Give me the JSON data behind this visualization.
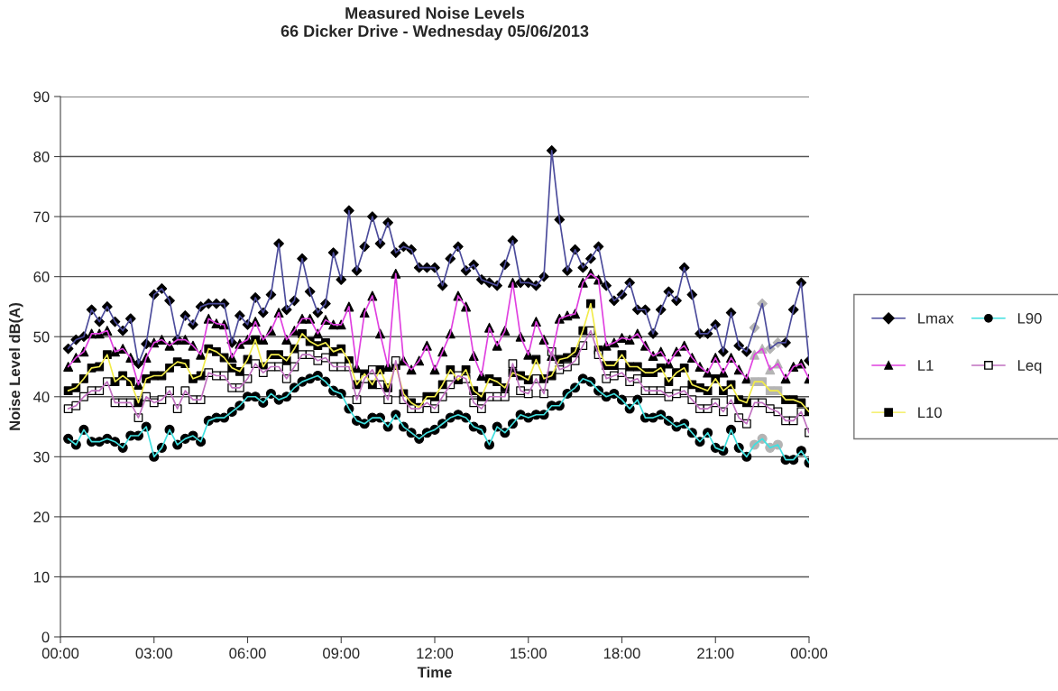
{
  "chart_data": {
    "type": "line",
    "title": "Measured Noise Levels",
    "subtitle": "66 Dicker Drive - Wednesday 05/06/2013",
    "xlabel": "Time",
    "ylabel": "Noise Level dB(A)",
    "x": [
      0.25,
      0.5,
      0.75,
      1,
      1.25,
      1.5,
      1.75,
      2,
      2.25,
      2.5,
      2.75,
      3,
      3.25,
      3.5,
      3.75,
      4,
      4.25,
      4.5,
      4.75,
      5,
      5.25,
      5.5,
      5.75,
      6,
      6.25,
      6.5,
      6.75,
      7,
      7.25,
      7.5,
      7.75,
      8,
      8.25,
      8.5,
      8.75,
      9,
      9.25,
      9.5,
      9.75,
      10,
      10.25,
      10.5,
      10.75,
      11,
      11.25,
      11.5,
      11.75,
      12,
      12.25,
      12.5,
      12.75,
      13,
      13.25,
      13.5,
      13.75,
      14,
      14.25,
      14.5,
      14.75,
      15,
      15.25,
      15.5,
      15.75,
      16,
      16.25,
      16.5,
      16.75,
      17,
      17.25,
      17.5,
      17.75,
      18,
      18.25,
      18.5,
      18.75,
      19,
      19.25,
      19.5,
      19.75,
      20,
      20.25,
      20.5,
      20.75,
      21,
      21.25,
      21.5,
      21.75,
      22,
      22.25,
      22.5,
      22.75,
      23,
      23.25,
      23.5,
      23.75,
      24
    ],
    "xlim": [
      0,
      24
    ],
    "xticks": [
      {
        "value": 0,
        "label": "00:00"
      },
      {
        "value": 3,
        "label": "03:00"
      },
      {
        "value": 6,
        "label": "06:00"
      },
      {
        "value": 9,
        "label": "09:00"
      },
      {
        "value": 12,
        "label": "12:00"
      },
      {
        "value": 15,
        "label": "15:00"
      },
      {
        "value": 18,
        "label": "18:00"
      },
      {
        "value": 21,
        "label": "21:00"
      },
      {
        "value": 24,
        "label": "00:00"
      }
    ],
    "ylim": [
      0,
      90
    ],
    "yticks": [
      0,
      10,
      20,
      30,
      40,
      50,
      60,
      70,
      80,
      90
    ],
    "grid": "y",
    "legend": "right",
    "line_style": "solid",
    "series": [
      {
        "name": "Lmax",
        "color": "#4b4b9b",
        "marker": "diamond",
        "values": [
          48,
          49.5,
          50,
          54.5,
          52.5,
          55,
          52.5,
          51,
          53,
          45.5,
          48.8,
          57,
          58,
          56,
          49.5,
          53.5,
          52,
          55,
          55.5,
          55.5,
          55.5,
          49,
          53.5,
          52,
          56.5,
          54,
          57,
          65.5,
          54.5,
          56,
          63,
          57.5,
          54,
          55.5,
          64,
          59.5,
          71,
          61,
          65,
          70,
          65.5,
          69,
          64,
          65,
          64.5,
          61.5,
          61.5,
          61.5,
          58.5,
          63,
          65,
          61,
          62,
          59.5,
          59,
          58.5,
          62,
          66,
          59,
          59,
          58.5,
          60,
          81,
          69.5,
          61,
          64.5,
          61.5,
          63,
          65,
          58.5,
          56,
          57,
          59,
          54.5,
          54.5,
          50.5,
          54.5,
          57.5,
          56,
          61.5,
          57,
          50.5,
          50.5,
          52,
          47.5,
          54,
          48.5,
          47.5,
          51.5,
          55.5,
          48,
          49,
          49,
          54.5,
          59,
          46
        ],
        "colors": [
          "#000000",
          "#000000",
          "#000000",
          "#000000",
          "#000000",
          "#000000",
          "#000000",
          "#000000",
          "#000000",
          "#000000",
          "#000000",
          "#000000",
          "#000000",
          "#000000",
          "#000000",
          "#000000",
          "#000000",
          "#000000",
          "#000000",
          "#000000",
          "#000000",
          "#000000",
          "#000000",
          "#000000",
          "#000000",
          "#000000",
          "#000000",
          "#000000",
          "#000000",
          "#000000",
          "#000000",
          "#000000",
          "#000000",
          "#000000",
          "#000000",
          "#000000",
          "#000000",
          "#000000",
          "#000000",
          "#000000",
          "#000000",
          "#000000",
          "#000000",
          "#000000",
          "#000000",
          "#000000",
          "#000000",
          "#000000",
          "#000000",
          "#000000",
          "#000000",
          "#000000",
          "#000000",
          "#000000",
          "#000000",
          "#000000",
          "#000000",
          "#000000",
          "#000000",
          "#000000",
          "#000000",
          "#000000",
          "#000000",
          "#000000",
          "#000000",
          "#000000",
          "#000000",
          "#000000",
          "#000000",
          "#000000",
          "#000000",
          "#000000",
          "#000000",
          "#000000",
          "#000000",
          "#000000",
          "#000000",
          "#000000",
          "#000000",
          "#000000",
          "#000000",
          "#000000",
          "#000000",
          "#000000",
          "#000000",
          "#000000",
          "#000000",
          "#000000",
          "#b4b4b4",
          "#b4b4b4",
          "#b4b4b4",
          "#b4b4b4",
          "#000000",
          "#000000",
          "#000000",
          "#000000"
        ]
      },
      {
        "name": "L1",
        "color": "#e040e0",
        "marker": "triangle",
        "values": [
          45,
          46.5,
          47.5,
          50.5,
          50.5,
          51,
          47.5,
          48,
          46.5,
          42,
          46.5,
          49,
          49.5,
          48.5,
          49.5,
          49.5,
          48.5,
          47,
          53,
          52.2,
          52,
          46.5,
          48.8,
          49.5,
          52.5,
          49.5,
          51,
          54,
          49.5,
          51,
          53,
          53,
          50.5,
          52.8,
          52,
          52,
          55,
          44.8,
          54,
          56.8,
          50.5,
          45,
          60.5,
          46,
          44.5,
          46,
          48.5,
          44.5,
          47.5,
          50.5,
          56.8,
          55,
          46.8,
          43.5,
          51.5,
          48.5,
          51,
          59,
          50,
          47,
          52.5,
          49.5,
          46.8,
          53,
          53.5,
          53.8,
          59,
          60.5,
          59.5,
          48.5,
          49,
          49.8,
          49.5,
          50.5,
          48.5,
          46.8,
          47.5,
          45.5,
          47.5,
          48.5,
          46.5,
          45,
          44,
          46.5,
          44,
          46.5,
          44.5,
          43,
          47,
          48,
          44.5,
          45.5,
          43,
          45,
          45.5,
          43
        ],
        "colors": [
          "#000000",
          "#000000",
          "#000000",
          "#000000",
          "#000000",
          "#000000",
          "#000000",
          "#000000",
          "#000000",
          "#000000",
          "#000000",
          "#000000",
          "#000000",
          "#000000",
          "#000000",
          "#000000",
          "#000000",
          "#000000",
          "#000000",
          "#000000",
          "#000000",
          "#000000",
          "#000000",
          "#000000",
          "#000000",
          "#000000",
          "#000000",
          "#000000",
          "#000000",
          "#000000",
          "#000000",
          "#000000",
          "#000000",
          "#000000",
          "#000000",
          "#000000",
          "#000000",
          "#000000",
          "#000000",
          "#000000",
          "#000000",
          "#000000",
          "#000000",
          "#000000",
          "#000000",
          "#000000",
          "#000000",
          "#000000",
          "#000000",
          "#000000",
          "#000000",
          "#000000",
          "#000000",
          "#000000",
          "#000000",
          "#000000",
          "#000000",
          "#000000",
          "#000000",
          "#000000",
          "#000000",
          "#000000",
          "#000000",
          "#000000",
          "#000000",
          "#000000",
          "#000000",
          "#000000",
          "#000000",
          "#000000",
          "#000000",
          "#000000",
          "#000000",
          "#000000",
          "#000000",
          "#000000",
          "#000000",
          "#000000",
          "#000000",
          "#000000",
          "#000000",
          "#000000",
          "#000000",
          "#000000",
          "#000000",
          "#000000",
          "#000000",
          "#000000",
          "#b4b4b4",
          "#b4b4b4",
          "#b4b4b4",
          "#b4b4b4",
          "#000000",
          "#000000",
          "#000000",
          "#000000"
        ]
      },
      {
        "name": "L10",
        "color": "#f2ec4a",
        "marker": "square",
        "values": [
          41,
          41.5,
          43,
          44.8,
          45,
          47,
          42.5,
          43.5,
          42.5,
          39,
          43,
          43.5,
          43.5,
          44.8,
          45.8,
          45.5,
          43,
          43.5,
          48,
          47.5,
          46.5,
          44.8,
          44.2,
          46.2,
          49.5,
          45,
          47,
          47,
          46,
          48,
          50.5,
          49.2,
          48.5,
          49,
          47.5,
          48,
          46,
          42,
          43.8,
          42,
          44.5,
          41.5,
          45.2,
          40.5,
          39,
          38.2,
          40,
          40,
          42,
          44.5,
          42.8,
          44.5,
          41,
          40,
          43,
          42.5,
          41.5,
          44,
          43.5,
          42.8,
          46.2,
          43,
          43.5,
          46.2,
          46.5,
          47.5,
          51,
          55.5,
          47.8,
          45.2,
          45.2,
          47,
          45,
          45,
          44,
          44,
          44.8,
          42.5,
          44,
          44.8,
          42,
          41.5,
          41,
          43,
          41,
          42,
          39.5,
          39,
          42.5,
          42.5,
          41,
          41,
          39.5,
          39.5,
          39,
          37.5
        ],
        "colors": [
          "#000000",
          "#000000",
          "#000000",
          "#000000",
          "#000000",
          "#000000",
          "#000000",
          "#000000",
          "#000000",
          "#000000",
          "#000000",
          "#000000",
          "#000000",
          "#000000",
          "#000000",
          "#000000",
          "#000000",
          "#000000",
          "#000000",
          "#000000",
          "#000000",
          "#000000",
          "#000000",
          "#000000",
          "#000000",
          "#000000",
          "#000000",
          "#000000",
          "#000000",
          "#000000",
          "#000000",
          "#000000",
          "#000000",
          "#000000",
          "#000000",
          "#000000",
          "#000000",
          "#000000",
          "#000000",
          "#000000",
          "#000000",
          "#000000",
          "#000000",
          "#000000",
          "#000000",
          "#000000",
          "#000000",
          "#000000",
          "#000000",
          "#000000",
          "#000000",
          "#000000",
          "#000000",
          "#000000",
          "#000000",
          "#000000",
          "#000000",
          "#000000",
          "#000000",
          "#000000",
          "#000000",
          "#000000",
          "#000000",
          "#000000",
          "#000000",
          "#000000",
          "#000000",
          "#000000",
          "#000000",
          "#000000",
          "#000000",
          "#000000",
          "#000000",
          "#000000",
          "#000000",
          "#000000",
          "#000000",
          "#000000",
          "#000000",
          "#000000",
          "#000000",
          "#000000",
          "#000000",
          "#000000",
          "#000000",
          "#000000",
          "#000000",
          "#000000",
          "#b4b4b4",
          "#b4b4b4",
          "#b4b4b4",
          "#b4b4b4",
          "#000000",
          "#000000",
          "#000000",
          "#000000"
        ]
      },
      {
        "name": "L90",
        "color": "#40e0e0",
        "marker": "circle",
        "values": [
          33,
          32,
          34.5,
          32.5,
          32.5,
          33,
          32.5,
          31.5,
          33.5,
          33.5,
          35,
          30,
          31.5,
          34.5,
          32,
          33,
          33.5,
          32.5,
          36,
          36.5,
          36.5,
          37.5,
          38.5,
          40,
          40,
          39,
          40.5,
          39.5,
          40,
          41.5,
          42.5,
          43,
          43.5,
          42.5,
          41,
          40.5,
          38,
          36,
          35.5,
          36.5,
          36.5,
          35,
          37,
          35,
          34,
          33,
          34,
          34.5,
          35.5,
          36.5,
          37,
          36.5,
          35,
          34.5,
          32,
          35,
          34,
          35.5,
          37,
          36.5,
          37,
          37,
          38.5,
          38.5,
          40.5,
          41.5,
          43,
          42.5,
          41,
          40,
          40.5,
          39.5,
          38,
          39.5,
          36.5,
          36.5,
          37,
          36,
          35,
          35.5,
          34,
          32.5,
          34,
          31.5,
          31,
          34.5,
          31.5,
          30,
          32,
          33,
          31.5,
          32,
          29.5,
          29.5,
          31,
          29
        ],
        "colors": [
          "#000000",
          "#000000",
          "#000000",
          "#000000",
          "#000000",
          "#000000",
          "#000000",
          "#000000",
          "#000000",
          "#000000",
          "#000000",
          "#000000",
          "#000000",
          "#000000",
          "#000000",
          "#000000",
          "#000000",
          "#000000",
          "#000000",
          "#000000",
          "#000000",
          "#000000",
          "#000000",
          "#000000",
          "#000000",
          "#000000",
          "#000000",
          "#000000",
          "#000000",
          "#000000",
          "#000000",
          "#000000",
          "#000000",
          "#000000",
          "#000000",
          "#000000",
          "#000000",
          "#000000",
          "#000000",
          "#000000",
          "#000000",
          "#000000",
          "#000000",
          "#000000",
          "#000000",
          "#000000",
          "#000000",
          "#000000",
          "#000000",
          "#000000",
          "#000000",
          "#000000",
          "#000000",
          "#000000",
          "#000000",
          "#000000",
          "#000000",
          "#000000",
          "#000000",
          "#000000",
          "#000000",
          "#000000",
          "#000000",
          "#000000",
          "#000000",
          "#000000",
          "#000000",
          "#000000",
          "#000000",
          "#000000",
          "#000000",
          "#000000",
          "#000000",
          "#000000",
          "#000000",
          "#000000",
          "#000000",
          "#000000",
          "#000000",
          "#000000",
          "#000000",
          "#000000",
          "#000000",
          "#000000",
          "#000000",
          "#000000",
          "#000000",
          "#000000",
          "#b4b4b4",
          "#b4b4b4",
          "#b4b4b4",
          "#b4b4b4",
          "#000000",
          "#000000",
          "#000000",
          "#000000"
        ]
      },
      {
        "name": "Leq",
        "color": "#c070c0",
        "marker": "square",
        "values": [
          38,
          38.5,
          40,
          41,
          41,
          42.5,
          39,
          39,
          39,
          36.5,
          40,
          39,
          39.5,
          41,
          38,
          41,
          39.5,
          39.5,
          44,
          43.5,
          43.5,
          41.5,
          41.5,
          43,
          45.5,
          44,
          45,
          45,
          43,
          45,
          47,
          47,
          46,
          46.5,
          45,
          45,
          45,
          39.5,
          43,
          44.5,
          42,
          39.5,
          46,
          39.5,
          38,
          38,
          39,
          38,
          40,
          42,
          43.5,
          43,
          39,
          38,
          40,
          40,
          40,
          45.5,
          41,
          40.5,
          43,
          40.5,
          47.5,
          44.5,
          45,
          46,
          48.5,
          51,
          47,
          43,
          43.5,
          44,
          42.5,
          43,
          41,
          41,
          41,
          40,
          40.5,
          41,
          39.5,
          38,
          38,
          39,
          37.5,
          39.5,
          36.5,
          35.5,
          39,
          39,
          38,
          37.5,
          36,
          36,
          37.5,
          34
        ],
        "colors": [
          "#ffffff",
          "#ffffff",
          "#ffffff",
          "#ffffff",
          "#ffffff",
          "#ffffff",
          "#ffffff",
          "#ffffff",
          "#ffffff",
          "#ffffff",
          "#ffffff",
          "#ffffff",
          "#ffffff",
          "#ffffff",
          "#ffffff",
          "#ffffff",
          "#ffffff",
          "#ffffff",
          "#ffffff",
          "#ffffff",
          "#ffffff",
          "#ffffff",
          "#ffffff",
          "#ffffff",
          "#ffffff",
          "#ffffff",
          "#ffffff",
          "#ffffff",
          "#ffffff",
          "#ffffff",
          "#ffffff",
          "#ffffff",
          "#ffffff",
          "#ffffff",
          "#ffffff",
          "#ffffff",
          "#ffffff",
          "#ffffff",
          "#ffffff",
          "#ffffff",
          "#ffffff",
          "#ffffff",
          "#ffffff",
          "#ffffff",
          "#ffffff",
          "#ffffff",
          "#ffffff",
          "#ffffff",
          "#ffffff",
          "#ffffff",
          "#ffffff",
          "#ffffff",
          "#ffffff",
          "#ffffff",
          "#ffffff",
          "#ffffff",
          "#ffffff",
          "#ffffff",
          "#ffffff",
          "#ffffff",
          "#ffffff",
          "#ffffff",
          "#ffffff",
          "#ffffff",
          "#ffffff",
          "#ffffff",
          "#ffffff",
          "#ffffff",
          "#ffffff",
          "#ffffff",
          "#ffffff",
          "#ffffff",
          "#ffffff",
          "#ffffff",
          "#ffffff",
          "#ffffff",
          "#ffffff",
          "#ffffff",
          "#ffffff",
          "#ffffff",
          "#ffffff",
          "#ffffff",
          "#ffffff",
          "#ffffff",
          "#ffffff",
          "#ffffff",
          "#ffffff",
          "#ffffff",
          "#ffffff",
          "#ffffff",
          "#ffffff",
          "#ffffff",
          "#ffffff",
          "#ffffff",
          "#ffffff",
          "#ffffff"
        ]
      }
    ]
  }
}
